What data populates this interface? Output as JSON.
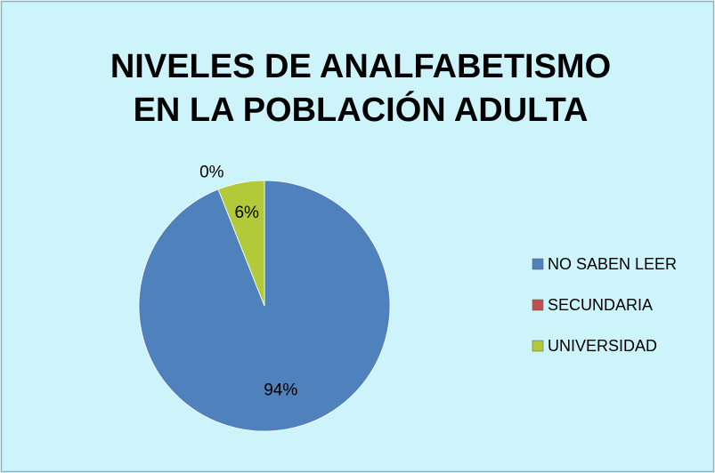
{
  "chart_data": {
    "type": "pie",
    "title": [
      "NIVELES DE ANALFABETISMO",
      "EN LA POBLACIÓN ADULTA"
    ],
    "categories": [
      "NO SABEN LEER",
      "SECUNDARIA",
      "UNIVERSIDAD"
    ],
    "values": [
      94,
      0,
      6
    ],
    "value_labels": [
      "94%",
      "0%",
      "6%"
    ],
    "colors": [
      "#4f81bd",
      "#c0504d",
      "#b2c93a"
    ],
    "legend": "right"
  }
}
